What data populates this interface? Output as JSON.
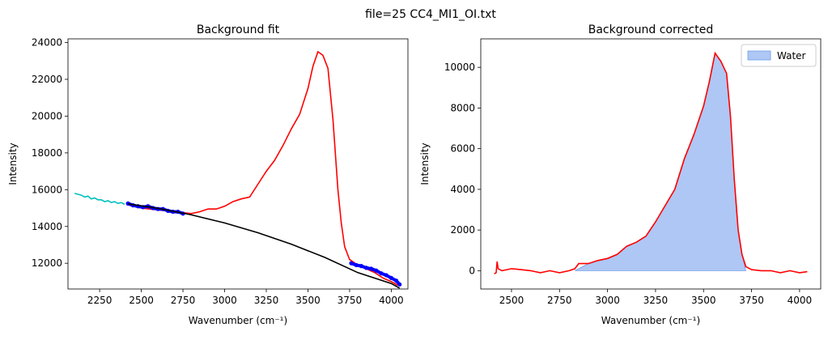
{
  "figure": {
    "suptitle": "file=25 CC4_MI1_OI.txt"
  },
  "chart_data": [
    {
      "type": "line",
      "title": "Background fit",
      "xlabel": "Wavenumber (cm⁻¹)",
      "ylabel": "Intensity",
      "xlim": [
        2060,
        4100
      ],
      "ylim": [
        10600,
        24200
      ],
      "xticks": [
        2250,
        2500,
        2750,
        3000,
        3250,
        3500,
        3750,
        4000
      ],
      "yticks": [
        12000,
        14000,
        16000,
        18000,
        20000,
        22000,
        24000
      ],
      "grid": false,
      "colors": {
        "signal": "#ff0000",
        "excluded": "#00bfbf",
        "baseline_points": "#0000ff",
        "fit": "#000000"
      },
      "series": [
        {
          "role": "excluded_low_region",
          "x": [
            2100,
            2120,
            2140,
            2160,
            2180,
            2200,
            2220,
            2240,
            2260,
            2280,
            2300,
            2320,
            2340,
            2360,
            2380,
            2400
          ],
          "y": [
            15800,
            15750,
            15700,
            15600,
            15650,
            15500,
            15550,
            15450,
            15450,
            15350,
            15400,
            15300,
            15350,
            15250,
            15300,
            15200
          ]
        },
        {
          "role": "spectrum",
          "x": [
            2410,
            2450,
            2500,
            2550,
            2600,
            2650,
            2700,
            2750,
            2800,
            2850,
            2900,
            2950,
            3000,
            3050,
            3100,
            3150,
            3200,
            3250,
            3300,
            3350,
            3400,
            3450,
            3500,
            3530,
            3560,
            3590,
            3620,
            3650,
            3680,
            3700,
            3720,
            3750,
            3800,
            3850,
            3900,
            3950,
            4000,
            4040
          ],
          "y": [
            15200,
            15100,
            15000,
            14950,
            14900,
            14850,
            14800,
            14750,
            14700,
            14800,
            14950,
            14950,
            15100,
            15350,
            15500,
            15600,
            16300,
            17000,
            17600,
            18400,
            19300,
            20100,
            21500,
            22700,
            23500,
            23300,
            22600,
            19800,
            16000,
            14200,
            12900,
            12200,
            11900,
            11700,
            11500,
            11200,
            11000,
            10800
          ]
        },
        {
          "role": "baseline_points_low",
          "x": [
            2420,
            2450,
            2480,
            2510,
            2540,
            2570,
            2600,
            2630,
            2660,
            2690,
            2720,
            2750
          ],
          "y": [
            15250,
            15150,
            15100,
            15050,
            15100,
            15000,
            14950,
            14950,
            14850,
            14800,
            14800,
            14700
          ]
        },
        {
          "role": "baseline_points_high",
          "x": [
            3760,
            3790,
            3820,
            3850,
            3880,
            3910,
            3940,
            3970,
            4000,
            4030,
            4050
          ],
          "y": [
            12000,
            11900,
            11850,
            11750,
            11700,
            11600,
            11450,
            11350,
            11200,
            11050,
            10850
          ]
        },
        {
          "role": "baseline_fit",
          "x": [
            2420,
            2600,
            2800,
            3000,
            3200,
            3400,
            3600,
            3800,
            4000,
            4050
          ],
          "y": [
            15230,
            14990,
            14630,
            14190,
            13660,
            13040,
            12320,
            11490,
            10900,
            10650
          ]
        }
      ]
    },
    {
      "type": "area",
      "title": "Background corrected",
      "xlabel": "Wavenumber (cm⁻¹)",
      "ylabel": "Intensity",
      "xlim": [
        2340,
        4110
      ],
      "ylim": [
        -900,
        11400
      ],
      "xticks": [
        2500,
        2750,
        3000,
        3250,
        3500,
        3750,
        4000
      ],
      "yticks": [
        0,
        2000,
        4000,
        6000,
        8000,
        10000
      ],
      "grid": false,
      "legend": {
        "position": "top-right",
        "entries": [
          "Water"
        ]
      },
      "colors": {
        "line": "#ff0000",
        "fill": "#aec7f4",
        "fill_edge": "#6f9ee8"
      },
      "series": [
        {
          "name": "Water",
          "role": "filled_region",
          "x": [
            2830,
            2900,
            2950,
            3000,
            3050,
            3100,
            3150,
            3200,
            3250,
            3300,
            3350,
            3400,
            3450,
            3500,
            3530,
            3560,
            3590,
            3620,
            3640,
            3660,
            3680,
            3700,
            3720
          ],
          "y": [
            0,
            350,
            500,
            600,
            800,
            1200,
            1400,
            1700,
            2400,
            3200,
            4000,
            5500,
            6700,
            8100,
            9300,
            10700,
            10300,
            9700,
            7600,
            4500,
            2000,
            800,
            0
          ]
        },
        {
          "role": "spectrum",
          "x": [
            2410,
            2420,
            2425,
            2430,
            2450,
            2500,
            2550,
            2600,
            2650,
            2700,
            2750,
            2800,
            2830,
            2850,
            2900,
            2950,
            3000,
            3050,
            3100,
            3150,
            3200,
            3250,
            3300,
            3350,
            3400,
            3450,
            3500,
            3530,
            3560,
            3590,
            3620,
            3640,
            3660,
            3680,
            3700,
            3720,
            3750,
            3800,
            3850,
            3900,
            3950,
            4000,
            4040
          ],
          "y": [
            -150,
            -100,
            450,
            100,
            0,
            100,
            50,
            0,
            -100,
            0,
            -100,
            0,
            100,
            350,
            350,
            500,
            600,
            800,
            1200,
            1400,
            1700,
            2400,
            3200,
            4000,
            5500,
            6700,
            8100,
            9300,
            10700,
            10300,
            9700,
            7600,
            4500,
            2000,
            800,
            200,
            50,
            0,
            0,
            -100,
            0,
            -100,
            -50
          ]
        }
      ]
    }
  ]
}
